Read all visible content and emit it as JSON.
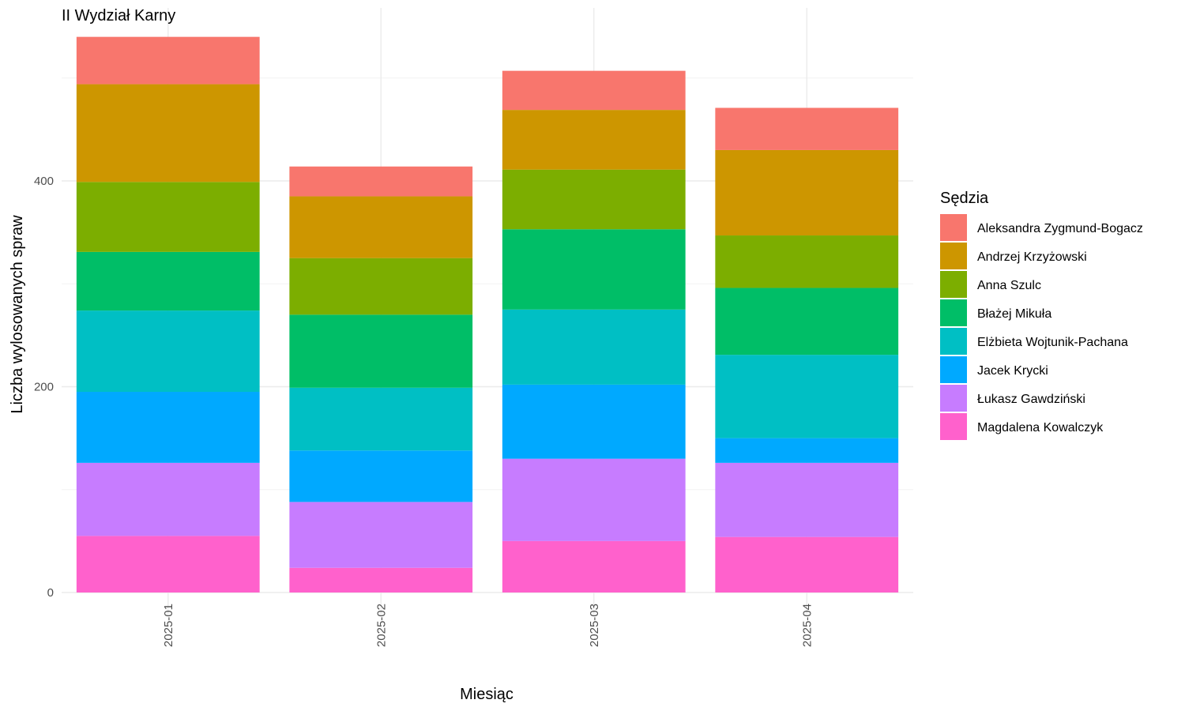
{
  "chart_data": {
    "type": "bar",
    "stacked": true,
    "title": "II Wydział Karny",
    "xlabel": "Miesiąc",
    "ylabel": "Liczba wylosowanych spraw",
    "legend_title": "Sędzia",
    "legend_position": "right",
    "grid": true,
    "ylim": [
      0,
      560
    ],
    "y_ticks": [
      0,
      200,
      400
    ],
    "categories": [
      "2025-01",
      "2025-02",
      "2025-03",
      "2025-04"
    ],
    "series": [
      {
        "name": "Aleksandra Zygmund-Bogacz",
        "color": "#F8766D",
        "values": [
          46,
          29,
          38,
          41
        ]
      },
      {
        "name": "Andrzej Krzyżowski",
        "color": "#CD9600",
        "values": [
          95,
          60,
          58,
          83
        ]
      },
      {
        "name": "Anna Szulc",
        "color": "#7CAE00",
        "values": [
          68,
          55,
          58,
          51
        ]
      },
      {
        "name": "Błażej Mikuła",
        "color": "#00BE67",
        "values": [
          57,
          71,
          78,
          65
        ]
      },
      {
        "name": "Elżbieta Wojtunik-Pachana",
        "color": "#00BFC4",
        "values": [
          79,
          61,
          73,
          81
        ]
      },
      {
        "name": "Jacek Krycki",
        "color": "#00A9FF",
        "values": [
          69,
          50,
          72,
          24
        ]
      },
      {
        "name": "Łukasz Gawdziński",
        "color": "#C77CFF",
        "values": [
          71,
          64,
          80,
          72
        ]
      },
      {
        "name": "Magdalena Kowalczyk",
        "color": "#FF61CC",
        "values": [
          55,
          24,
          50,
          54
        ]
      }
    ]
  }
}
